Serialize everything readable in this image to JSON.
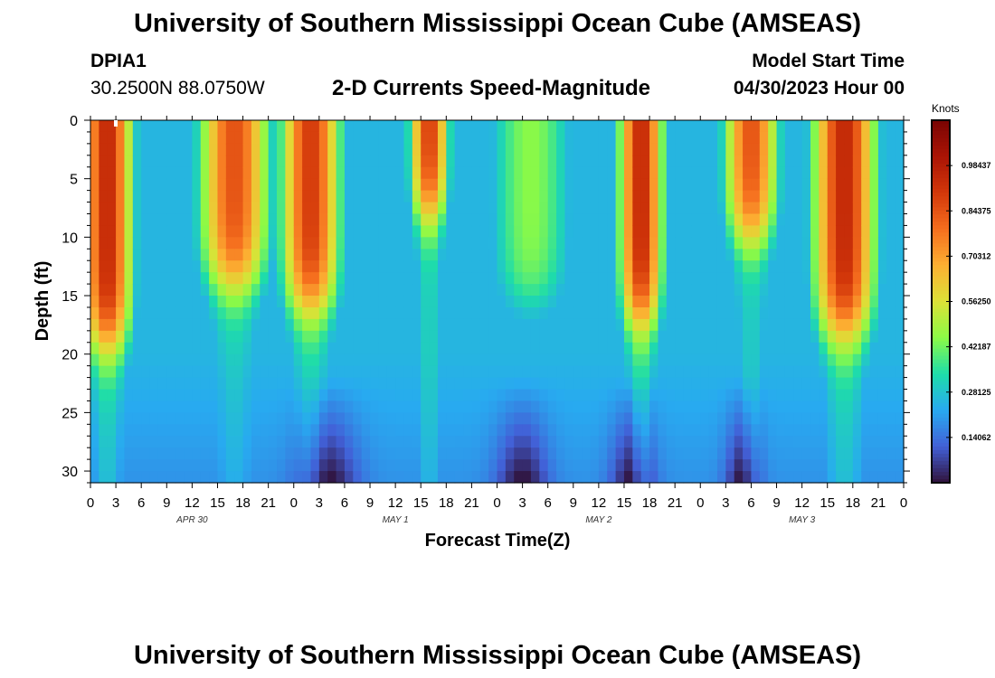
{
  "header": {
    "title": "University of Southern Mississippi Ocean Cube (AMSEAS)",
    "station_id": "DPIA1",
    "station_coords": "30.2500N  88.0750W",
    "plot_title": "2-D Currents Speed-Magnitude",
    "model_start_label": "Model Start Time",
    "model_start_value": "04/30/2023 Hour 00",
    "footer_title": "University of Southern Mississippi Ocean Cube (AMSEAS)"
  },
  "chart_data": {
    "type": "heatmap",
    "title": "2-D Currents Speed-Magnitude",
    "xlabel": "Forecast Time(Z)",
    "ylabel": "Depth (ft)",
    "xlim_hours": [
      0,
      96
    ],
    "ylim_ft": [
      0,
      31
    ],
    "x_tick_labels": [
      "0",
      "3",
      "6",
      "9",
      "12",
      "15",
      "18",
      "21",
      "0",
      "3",
      "6",
      "9",
      "12",
      "15",
      "18",
      "21",
      "0",
      "3",
      "6",
      "9",
      "12",
      "15",
      "18",
      "21",
      "0",
      "3",
      "6",
      "9",
      "12",
      "15",
      "18",
      "21",
      "0"
    ],
    "y_tick_labels": [
      "0",
      "5",
      "10",
      "15",
      "20",
      "25",
      "30"
    ],
    "y_tick_values": [
      0,
      5,
      10,
      15,
      20,
      25,
      30
    ],
    "day_labels": [
      {
        "text": "APR 30",
        "hour": 12
      },
      {
        "text": "MAY 1",
        "hour": 36
      },
      {
        "text": "MAY 2",
        "hour": 60
      },
      {
        "text": "MAY 3",
        "hour": 84
      }
    ],
    "colorbar": {
      "label": "Knots",
      "min": 0,
      "max": 1.125,
      "tick_labels": [
        "0.98437",
        "0.84375",
        "0.70312",
        "0.56250",
        "0.42187",
        "0.28125",
        "0.14062"
      ],
      "tick_values": [
        0.984375,
        0.84375,
        0.703125,
        0.5625,
        0.421875,
        0.28125,
        0.140625
      ]
    },
    "value_fields": {
      "description": "speed (knots) vs hour and depth, approximated as surface peaks per ebb/flood pulse",
      "surface_pulses": [
        {
          "hour": 2,
          "peak": 0.95,
          "width": 3.2,
          "depth_ft": 19
        },
        {
          "hour": 17,
          "peak": 0.85,
          "width": 4.5,
          "depth_ft": 14
        },
        {
          "hour": 26,
          "peak": 0.9,
          "width": 3.8,
          "depth_ft": 16
        },
        {
          "hour": 40,
          "peak": 0.9,
          "width": 2.5,
          "depth_ft": 8
        },
        {
          "hour": 52,
          "peak": 0.45,
          "width": 6,
          "depth_ft": 16
        },
        {
          "hour": 65,
          "peak": 0.95,
          "width": 2.8,
          "depth_ft": 17
        },
        {
          "hour": 78,
          "peak": 0.85,
          "width": 3.5,
          "depth_ft": 10
        },
        {
          "hour": 89,
          "peak": 0.95,
          "width": 4,
          "depth_ft": 18
        }
      ]
    }
  }
}
